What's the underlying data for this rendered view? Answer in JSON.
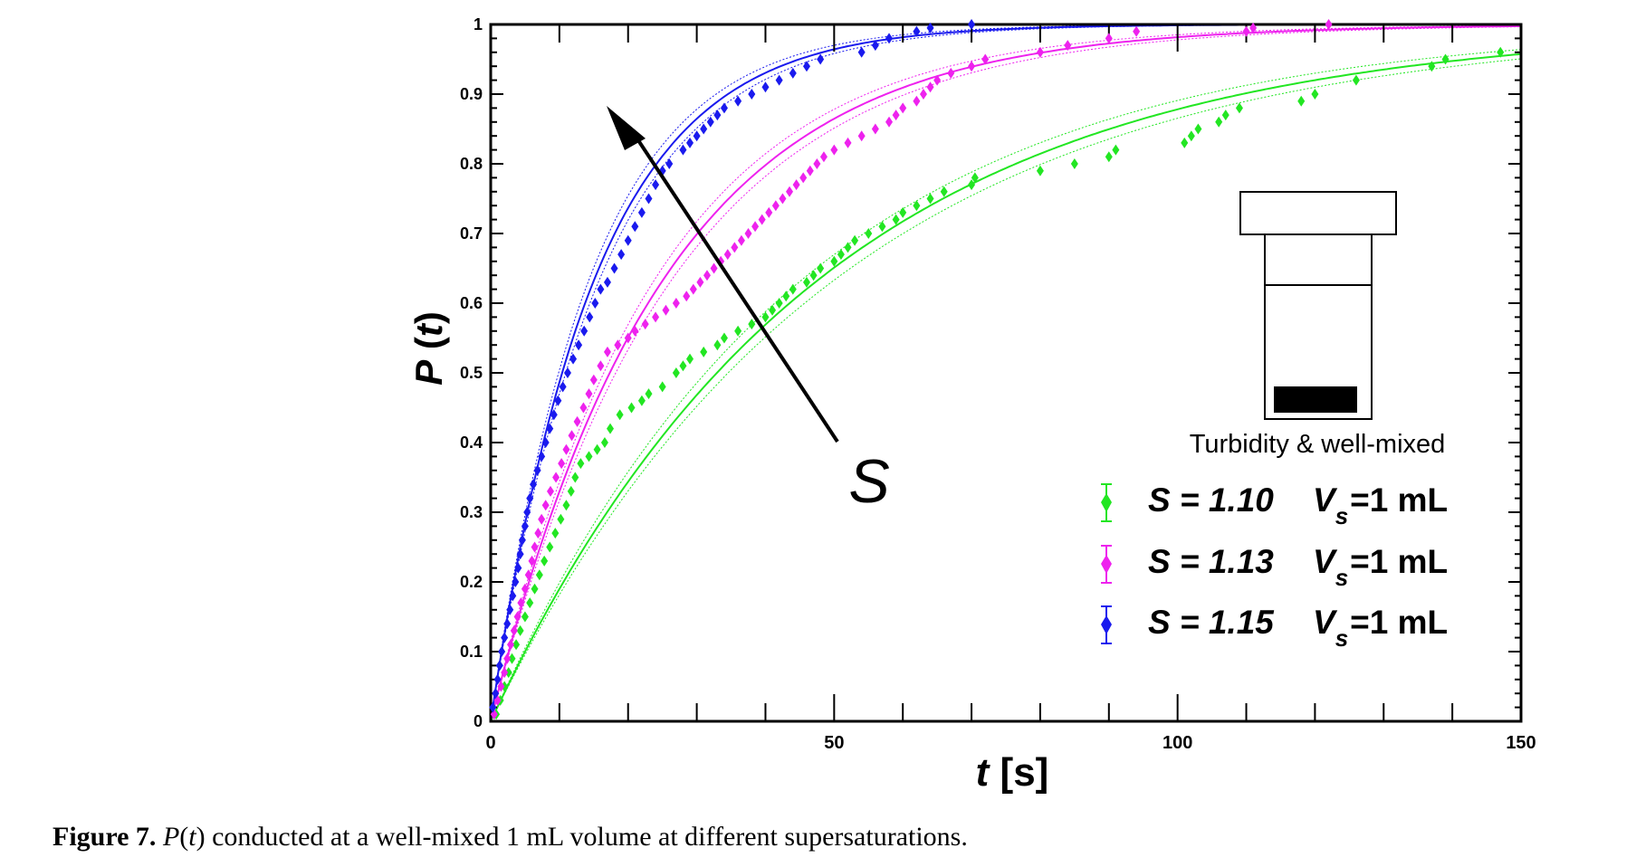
{
  "chart_data": {
    "type": "scatter",
    "title": "",
    "xlabel": {
      "var": "t",
      "unit": "[s]"
    },
    "ylabel": {
      "func": "P",
      "var": "t"
    },
    "xlim": [
      0,
      150
    ],
    "ylim": [
      0,
      1
    ],
    "x_ticks": [
      0,
      50,
      100,
      150
    ],
    "y_ticks": [
      0,
      0.1,
      0.2,
      0.3,
      0.4,
      0.5,
      0.6,
      0.7,
      0.8,
      0.9,
      1
    ],
    "y_tick_labels": [
      "0",
      "0.1",
      "0.2",
      "0.3",
      "0.4",
      "0.5",
      "0.6",
      "0.7",
      "0.8",
      "0.9",
      "1"
    ],
    "x_tick_labels": [
      "0",
      "50",
      "100",
      "150"
    ],
    "grid": false,
    "legend_position": "bottom-right",
    "series": [
      {
        "name": "S = 1.10   V_s =1 mL",
        "legend": {
          "s_part": "S = 1.10",
          "v_part": "V",
          "v_sub": "s",
          "v_rest": "=1 mL"
        },
        "color": "#22e622",
        "fit_tau": 47.5,
        "points": [
          [
            0.8,
            0.01
          ],
          [
            1.4,
            0.03
          ],
          [
            2,
            0.05
          ],
          [
            2.6,
            0.07
          ],
          [
            3.1,
            0.09
          ],
          [
            3.7,
            0.11
          ],
          [
            4.3,
            0.13
          ],
          [
            5,
            0.15
          ],
          [
            5.7,
            0.17
          ],
          [
            6.4,
            0.19
          ],
          [
            7.1,
            0.21
          ],
          [
            7.8,
            0.23
          ],
          [
            8.6,
            0.25
          ],
          [
            9.4,
            0.27
          ],
          [
            10.2,
            0.29
          ],
          [
            11,
            0.31
          ],
          [
            11.7,
            0.33
          ],
          [
            12.3,
            0.35
          ],
          [
            13.1,
            0.37
          ],
          [
            14.3,
            0.38
          ],
          [
            15.5,
            0.39
          ],
          [
            16.6,
            0.4
          ],
          [
            17.4,
            0.42
          ],
          [
            18.8,
            0.44
          ],
          [
            20.5,
            0.45
          ],
          [
            22,
            0.46
          ],
          [
            23,
            0.47
          ],
          [
            25,
            0.48
          ],
          [
            27,
            0.5
          ],
          [
            28,
            0.51
          ],
          [
            29,
            0.52
          ],
          [
            31,
            0.53
          ],
          [
            33,
            0.54
          ],
          [
            34,
            0.55
          ],
          [
            36,
            0.56
          ],
          [
            38,
            0.57
          ],
          [
            40,
            0.58
          ],
          [
            41,
            0.59
          ],
          [
            42,
            0.6
          ],
          [
            43,
            0.61
          ],
          [
            44,
            0.62
          ],
          [
            46,
            0.63
          ],
          [
            47,
            0.64
          ],
          [
            48,
            0.65
          ],
          [
            50,
            0.66
          ],
          [
            51,
            0.67
          ],
          [
            52,
            0.68
          ],
          [
            53,
            0.69
          ],
          [
            55,
            0.7
          ],
          [
            57,
            0.71
          ],
          [
            59,
            0.72
          ],
          [
            60,
            0.73
          ],
          [
            62,
            0.74
          ],
          [
            64,
            0.75
          ],
          [
            66,
            0.76
          ],
          [
            70,
            0.77
          ],
          [
            70.5,
            0.78
          ],
          [
            80,
            0.79
          ],
          [
            85,
            0.8
          ],
          [
            90,
            0.81
          ],
          [
            91,
            0.82
          ],
          [
            101,
            0.83
          ],
          [
            102,
            0.84
          ],
          [
            103,
            0.85
          ],
          [
            106,
            0.86
          ],
          [
            107,
            0.87
          ],
          [
            109,
            0.88
          ],
          [
            118,
            0.89
          ],
          [
            120,
            0.9
          ],
          [
            126,
            0.92
          ],
          [
            137,
            0.94
          ],
          [
            139,
            0.95
          ],
          [
            147,
            0.96
          ]
        ]
      },
      {
        "name": "S = 1.13   V_s =1 mL",
        "legend": {
          "s_part": "S = 1.13",
          "v_part": "V",
          "v_sub": "s",
          "v_rest": "=1 mL"
        },
        "color": "#ee22ee",
        "fit_tau": 25,
        "points": [
          [
            0.5,
            0.01
          ],
          [
            1,
            0.03
          ],
          [
            1.5,
            0.05
          ],
          [
            2,
            0.07
          ],
          [
            2.4,
            0.09
          ],
          [
            2.9,
            0.11
          ],
          [
            3.4,
            0.13
          ],
          [
            3.9,
            0.15
          ],
          [
            4.4,
            0.17
          ],
          [
            5,
            0.19
          ],
          [
            5.5,
            0.21
          ],
          [
            6,
            0.23
          ],
          [
            6.4,
            0.25
          ],
          [
            6.9,
            0.27
          ],
          [
            7.4,
            0.29
          ],
          [
            8,
            0.31
          ],
          [
            8.7,
            0.33
          ],
          [
            9.5,
            0.35
          ],
          [
            10.3,
            0.37
          ],
          [
            11,
            0.39
          ],
          [
            11.8,
            0.41
          ],
          [
            12.6,
            0.43
          ],
          [
            13.5,
            0.45
          ],
          [
            14.3,
            0.47
          ],
          [
            15,
            0.49
          ],
          [
            16,
            0.51
          ],
          [
            17,
            0.53
          ],
          [
            18.5,
            0.54
          ],
          [
            20,
            0.55
          ],
          [
            21,
            0.56
          ],
          [
            22.5,
            0.57
          ],
          [
            24,
            0.58
          ],
          [
            25.5,
            0.59
          ],
          [
            27,
            0.6
          ],
          [
            28.5,
            0.61
          ],
          [
            29.5,
            0.62
          ],
          [
            30.5,
            0.63
          ],
          [
            31.5,
            0.64
          ],
          [
            32.5,
            0.65
          ],
          [
            33.5,
            0.66
          ],
          [
            34.5,
            0.67
          ],
          [
            35.5,
            0.68
          ],
          [
            36.5,
            0.69
          ],
          [
            37.5,
            0.7
          ],
          [
            38.5,
            0.71
          ],
          [
            39.5,
            0.72
          ],
          [
            40.5,
            0.73
          ],
          [
            41.5,
            0.74
          ],
          [
            42.5,
            0.75
          ],
          [
            43.5,
            0.76
          ],
          [
            44.5,
            0.77
          ],
          [
            45.5,
            0.78
          ],
          [
            46.5,
            0.79
          ],
          [
            47.5,
            0.8
          ],
          [
            48.5,
            0.81
          ],
          [
            50,
            0.82
          ],
          [
            52,
            0.83
          ],
          [
            54,
            0.84
          ],
          [
            56,
            0.85
          ],
          [
            58,
            0.86
          ],
          [
            59,
            0.87
          ],
          [
            60,
            0.88
          ],
          [
            62,
            0.89
          ],
          [
            63,
            0.9
          ],
          [
            64,
            0.91
          ],
          [
            65,
            0.92
          ],
          [
            67,
            0.93
          ],
          [
            70,
            0.94
          ],
          [
            72,
            0.95
          ],
          [
            80,
            0.96
          ],
          [
            84,
            0.97
          ],
          [
            90,
            0.98
          ],
          [
            94,
            0.99
          ],
          [
            110,
            0.99
          ],
          [
            111,
            0.995
          ],
          [
            122,
            1.0
          ]
        ]
      },
      {
        "name": "S = 1.15   V_s =1 mL",
        "legend": {
          "s_part": "S = 1.15",
          "v_part": "V",
          "v_sub": "s",
          "v_rest": "=1 mL"
        },
        "color": "#1a1aee",
        "fit_tau": 15,
        "points": [
          [
            0.3,
            0.02
          ],
          [
            0.7,
            0.04
          ],
          [
            1,
            0.06
          ],
          [
            1.3,
            0.08
          ],
          [
            1.6,
            0.1
          ],
          [
            2,
            0.12
          ],
          [
            2.4,
            0.14
          ],
          [
            2.8,
            0.16
          ],
          [
            3.2,
            0.18
          ],
          [
            3.6,
            0.2
          ],
          [
            4,
            0.22
          ],
          [
            4.3,
            0.24
          ],
          [
            4.6,
            0.26
          ],
          [
            5,
            0.28
          ],
          [
            5.3,
            0.3
          ],
          [
            5.7,
            0.32
          ],
          [
            6.2,
            0.34
          ],
          [
            6.8,
            0.36
          ],
          [
            7.4,
            0.38
          ],
          [
            8,
            0.4
          ],
          [
            8.6,
            0.42
          ],
          [
            9.2,
            0.44
          ],
          [
            9.8,
            0.46
          ],
          [
            10.5,
            0.48
          ],
          [
            11.2,
            0.5
          ],
          [
            12,
            0.52
          ],
          [
            12.8,
            0.54
          ],
          [
            13.6,
            0.56
          ],
          [
            14.4,
            0.58
          ],
          [
            15.2,
            0.6
          ],
          [
            16,
            0.62
          ],
          [
            17,
            0.63
          ],
          [
            18,
            0.65
          ],
          [
            19,
            0.67
          ],
          [
            20,
            0.69
          ],
          [
            21,
            0.71
          ],
          [
            22,
            0.73
          ],
          [
            23,
            0.75
          ],
          [
            24,
            0.77
          ],
          [
            25,
            0.79
          ],
          [
            26,
            0.8
          ],
          [
            28,
            0.82
          ],
          [
            29,
            0.83
          ],
          [
            30,
            0.84
          ],
          [
            31,
            0.85
          ],
          [
            32,
            0.86
          ],
          [
            33,
            0.87
          ],
          [
            34,
            0.88
          ],
          [
            36,
            0.89
          ],
          [
            38,
            0.9
          ],
          [
            40,
            0.91
          ],
          [
            42,
            0.92
          ],
          [
            44,
            0.93
          ],
          [
            46,
            0.94
          ],
          [
            48,
            0.95
          ],
          [
            54,
            0.96
          ],
          [
            56,
            0.97
          ],
          [
            58,
            0.98
          ],
          [
            62,
            0.99
          ],
          [
            64,
            0.995
          ],
          [
            70,
            1.0
          ]
        ]
      }
    ],
    "annotations": {
      "arrow_label": "S",
      "inset_label": "Turbidity & well-mixed"
    }
  },
  "caption": {
    "label": "Figure 7.",
    "func": "P",
    "var": "t",
    "rest": " conducted at a well-mixed 1 mL volume at different supersaturations."
  }
}
